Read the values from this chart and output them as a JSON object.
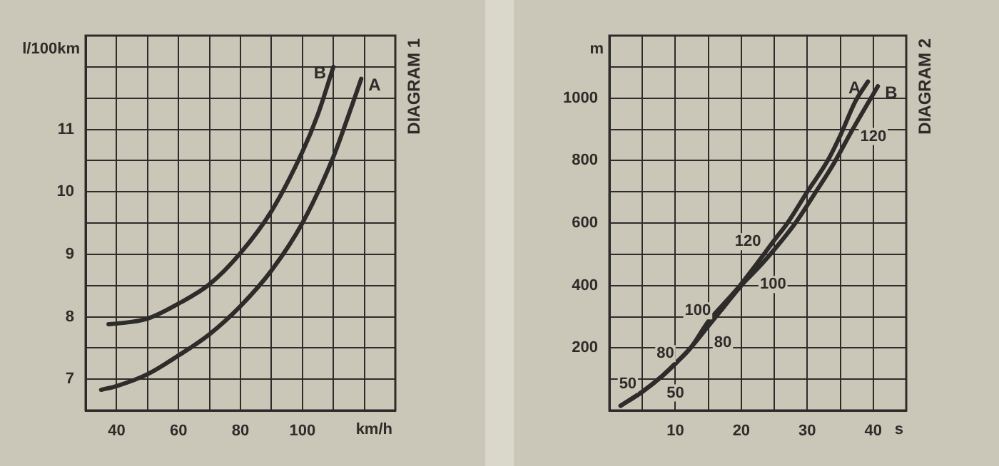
{
  "chart_data": [
    {
      "type": "line",
      "title": "DIAGRAM 1",
      "xlabel": "km/h",
      "ylabel": "l/100km",
      "xlim": [
        30,
        130
      ],
      "xticks": [
        40,
        {
          "value": 50,
          "label": null
        },
        60,
        {
          "value": 70,
          "label": null
        },
        80,
        {
          "value": 90,
          "label": null
        },
        100,
        {
          "value": 110,
          "label": null
        },
        {
          "value": 120,
          "label": null
        }
      ],
      "ylim": [
        6.5,
        12.5
      ],
      "yticks": [
        7,
        {
          "value": 7.5,
          "label": null
        },
        8,
        {
          "value": 8.5,
          "label": null
        },
        9,
        {
          "value": 9.5,
          "label": null
        },
        10,
        {
          "value": 10.5,
          "label": null
        },
        11,
        {
          "value": 11.5,
          "label": null
        },
        {
          "value": 12,
          "label": null
        }
      ],
      "grid": true,
      "marker": "none",
      "line_style": "solid",
      "series": [
        {
          "name": "B",
          "color": "#2e2c2a",
          "x": [
            37.4,
            40,
            50,
            60,
            70,
            80,
            90,
            100,
            105,
            110
          ],
          "values": [
            7.88,
            7.89,
            7.97,
            8.21,
            8.52,
            9.02,
            9.69,
            10.64,
            11.24,
            12.0
          ]
        },
        {
          "name": "A",
          "color": "#2e2c2a",
          "x": [
            35,
            40,
            50,
            60,
            70,
            80,
            90,
            100,
            110,
            115,
            119
          ],
          "values": [
            6.83,
            6.89,
            7.08,
            7.38,
            7.72,
            8.17,
            8.74,
            9.5,
            10.56,
            11.24,
            11.81
          ]
        }
      ]
    },
    {
      "type": "line",
      "title": "DIAGRAM 2",
      "xlabel": "s",
      "ylabel": "m",
      "xlim": [
        0,
        45
      ],
      "xticks": [
        {
          "value": 5,
          "label": null
        },
        10,
        {
          "value": 15,
          "label": null
        },
        20,
        {
          "value": 25,
          "label": null
        },
        30,
        {
          "value": 35,
          "label": null
        },
        40
      ],
      "ylim": [
        0,
        1200
      ],
      "yticks": [
        {
          "value": 100,
          "label": null
        },
        200,
        {
          "value": 300,
          "label": null
        },
        400,
        {
          "value": 500,
          "label": null
        },
        600,
        {
          "value": 700,
          "label": null
        },
        800,
        {
          "value": 900,
          "label": null
        },
        1000,
        {
          "value": 1100,
          "label": null
        }
      ],
      "grid": true,
      "marker": "none",
      "line_style": "solid",
      "series": [
        {
          "name": "A",
          "color": "#2e2c2a",
          "x": [
            1.7,
            5,
            8,
            10,
            12.3,
            15,
            17.5,
            19.8,
            22,
            25,
            27,
            30,
            33.1,
            35,
            37.3,
            39.2
          ],
          "values": [
            15,
            60,
            110,
            150,
            200,
            285,
            345,
            400,
            460,
            545,
            600,
            700,
            800,
            880,
            990,
            1053
          ]
        },
        {
          "name": "B",
          "color": "#2e2c2a",
          "x": [
            1.7,
            5,
            8,
            10,
            12.3,
            15,
            17.5,
            20,
            22.5,
            25,
            28.2,
            31,
            34,
            36.7,
            40.7
          ],
          "values": [
            15,
            60,
            110,
            150,
            200,
            270,
            335,
            400,
            455,
            515,
            600,
            690,
            790,
            893,
            1038
          ]
        }
      ],
      "annotations": [
        {
          "text": "50",
          "x": 2.8,
          "y": 84
        },
        {
          "text": "50",
          "x": 10,
          "y": 56
        },
        {
          "text": "80",
          "x": 8.5,
          "y": 182
        },
        {
          "text": "80",
          "x": 17.2,
          "y": 217
        },
        {
          "text": "100",
          "x": 13.4,
          "y": 319
        },
        {
          "text": "100",
          "x": 24.8,
          "y": 403
        },
        {
          "text": "120",
          "x": 21,
          "y": 540
        },
        {
          "text": "120",
          "x": 40,
          "y": 877
        }
      ]
    }
  ]
}
